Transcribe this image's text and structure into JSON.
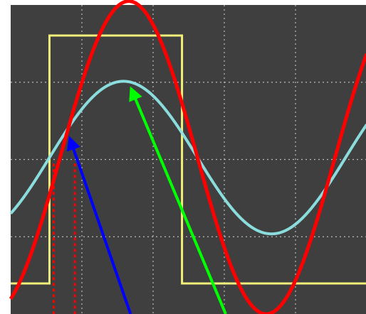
{
  "chart_data": {
    "type": "line",
    "title": "",
    "xlabel": "",
    "ylabel": "",
    "grid": true,
    "grid_divisions": {
      "x": 5,
      "y": 4
    },
    "colors": {
      "background": "#3f3f3f",
      "grid": "#d9d9d9",
      "square_wave": "#f2ef7a",
      "filtered_sine": "#8fe6e6",
      "fundamental_sine": "#ff0000",
      "blue_arrow": "#0000ff",
      "green_arrow": "#00ff00",
      "marker_lines": "#ff0000"
    },
    "series": [
      {
        "id": "square_wave",
        "type": "step",
        "low_level": -1.65,
        "high_level": 1.6,
        "rise_at": 0.4,
        "fall_at": 2.28
      },
      {
        "id": "filtered_sine",
        "type": "sine",
        "amplitude": 1.0,
        "offset": 0.0,
        "phase": 0.4,
        "period": 4.2
      },
      {
        "id": "fundamental_sine",
        "type": "sine",
        "amplitude": 2.05,
        "offset": 0.0,
        "phase": 0.55,
        "period": 3.9
      }
    ],
    "marker_lines": [
      0.46,
      0.76
    ],
    "annotations": [
      {
        "id": "blue-arrow",
        "from": [
          1.55,
          -2.05
        ],
        "to": [
          0.69,
          0.25
        ]
      },
      {
        "id": "green-arrow",
        "from": [
          2.9,
          -2.05
        ],
        "to": [
          1.56,
          0.9
        ]
      }
    ],
    "xlim": [
      -0.15,
      4.9
    ],
    "ylim": [
      -2.05,
      2.0
    ]
  }
}
